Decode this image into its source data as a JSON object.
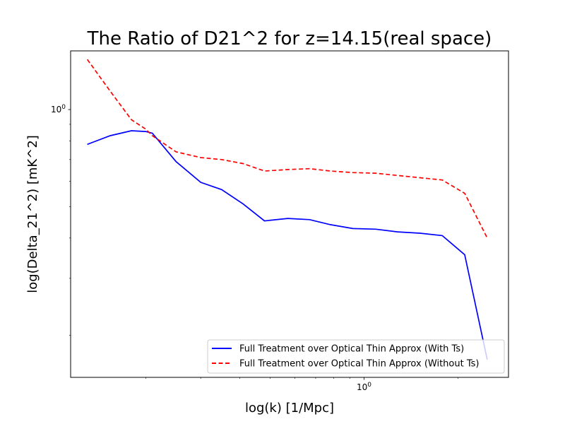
{
  "chart_data": {
    "type": "line",
    "title": "The Ratio of D21^2 for z=14.15(real space)",
    "xlabel": "log(k) [1/Mpc]",
    "ylabel": "log(Delta_21^2) [mK^2]",
    "xscale": "log",
    "yscale": "log",
    "xlim": [
      0.115,
      2.9
    ],
    "ylim": [
      0.148,
      1.52
    ],
    "x_ticks": [
      {
        "value": 1.0,
        "label": "10^0"
      }
    ],
    "y_ticks": [
      {
        "value": 1.0,
        "label": "10^0"
      }
    ],
    "grid": false,
    "legend_position": "bottom-right",
    "x": [
      0.13,
      0.154,
      0.18,
      0.2,
      0.21,
      0.25,
      0.3,
      0.35,
      0.41,
      0.48,
      0.57,
      0.67,
      0.78,
      0.92,
      1.09,
      1.28,
      1.51,
      1.78,
      2.1,
      2.48
    ],
    "series": [
      {
        "name": "Full Treatment over Optical Thin Approx (With Ts)",
        "color": "#0000ff",
        "dash": "solid",
        "values": [
          0.78,
          0.83,
          0.86,
          0.855,
          0.845,
          0.69,
          0.595,
          0.565,
          0.51,
          0.452,
          0.46,
          0.456,
          0.44,
          0.428,
          0.426,
          0.418,
          0.414,
          0.407,
          0.355,
          0.168
        ]
      },
      {
        "name": "Full Treatment over Optical Thin Approx (Without Ts)",
        "color": "#ff0000",
        "dash": "dashed",
        "values": [
          1.43,
          1.14,
          0.93,
          0.87,
          0.83,
          0.74,
          0.71,
          0.7,
          0.68,
          0.645,
          0.652,
          0.656,
          0.645,
          0.638,
          0.635,
          0.625,
          0.615,
          0.605,
          0.55,
          0.4
        ]
      }
    ]
  }
}
